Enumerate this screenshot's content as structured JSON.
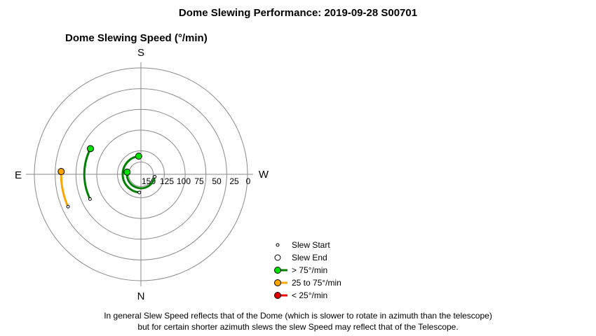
{
  "page": {
    "title": "Dome Slewing Performance: 2019-09-28 S00701",
    "footnote_line1": "In general Slew Speed reflects that of the Dome (which is slower to rotate in azimuth than the telescope)",
    "footnote_line2": "but for certain shorter azimuth slews the slew Speed may reflect that of the Telescope."
  },
  "chart_data": {
    "type": "polar",
    "title": "Dome Slewing Speed (°/min)",
    "direction_labels": {
      "top": "S",
      "bottom": "N",
      "left": "E",
      "right": "W"
    },
    "radial_axis": {
      "ticks": [
        150,
        125,
        100,
        75,
        50,
        25,
        0
      ],
      "inverted": true,
      "range": [
        0,
        175
      ]
    },
    "grid": true,
    "colors": {
      "fast": "#008000",
      "medium": "#ffa500",
      "slow": "#ff0000",
      "fast_marker": "#00e000",
      "medium_marker": "#ffa500",
      "slow_marker": "#e00000"
    },
    "slews": [
      {
        "speed": 82,
        "start_az": 64,
        "end_az": 117,
        "category": "fast"
      },
      {
        "speed": 145,
        "start_az": 5,
        "end_az": 173,
        "category": "fast"
      },
      {
        "speed": 152,
        "start_az": 280,
        "end_az": 99,
        "category": "fast"
      },
      {
        "speed": 44,
        "start_az": 66,
        "end_az": 92,
        "category": "medium"
      }
    ]
  },
  "legend": {
    "items": [
      {
        "label": "Slew Start",
        "marker": "start"
      },
      {
        "label": "Slew End",
        "marker": "end"
      },
      {
        "label": "> 75°/min",
        "marker": "fast"
      },
      {
        "label": "25 to 75°/min",
        "marker": "medium"
      },
      {
        "label": "< 25°/min",
        "marker": "slow"
      }
    ]
  }
}
